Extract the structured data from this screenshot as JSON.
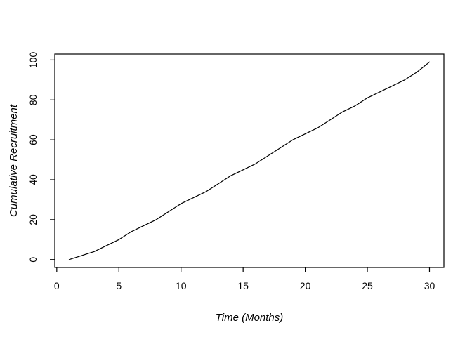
{
  "figure": {
    "background": "#ffffff",
    "foreground": "#000000"
  },
  "chart_data": {
    "type": "line",
    "title": "",
    "xlabel": "Time (Months)",
    "ylabel": "Cumulative Recruitment",
    "x": [
      1,
      2,
      3,
      4,
      5,
      6,
      7,
      8,
      9,
      10,
      11,
      12,
      13,
      14,
      15,
      16,
      17,
      18,
      19,
      20,
      21,
      22,
      23,
      24,
      25,
      26,
      27,
      28,
      29,
      30
    ],
    "series": [
      {
        "name": "cumulative-recruitment",
        "values": [
          0,
          2,
          4,
          7,
          10,
          14,
          17,
          20,
          24,
          28,
          31,
          34,
          38,
          42,
          45,
          48,
          52,
          56,
          60,
          63,
          66,
          70,
          74,
          77,
          81,
          84,
          87,
          90,
          94,
          99
        ]
      }
    ],
    "xlim": [
      1,
      30
    ],
    "ylim": [
      0,
      99
    ],
    "x_ticks": [
      0,
      5,
      10,
      15,
      20,
      25,
      30
    ],
    "y_ticks": [
      0,
      20,
      40,
      60,
      80,
      100
    ],
    "grid": false,
    "legend": false,
    "line_color": "#000000",
    "axis_color": "#000000",
    "frame": "full-box",
    "style": "R-base-plot"
  }
}
